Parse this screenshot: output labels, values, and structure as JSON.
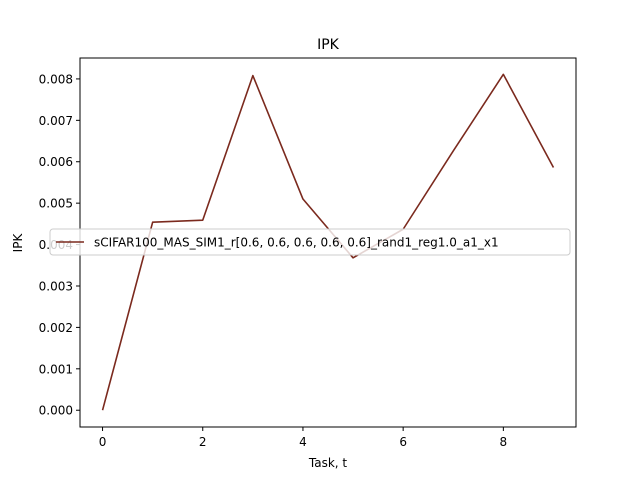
{
  "chart_data": {
    "type": "line",
    "title": "IPK",
    "xlabel": "Task, t",
    "ylabel": "IPK",
    "xlim": [
      -0.45,
      9.45
    ],
    "ylim": [
      -0.000405,
      0.008505
    ],
    "xticks": [
      0,
      2,
      4,
      6,
      8
    ],
    "xtick_labels": [
      "0",
      "2",
      "4",
      "6",
      "8"
    ],
    "yticks": [
      0,
      0.001,
      0.002,
      0.003,
      0.004,
      0.005,
      0.006,
      0.007,
      0.008
    ],
    "ytick_labels": [
      "0.000",
      "0.001",
      "0.002",
      "0.003",
      "0.004",
      "0.005",
      "0.006",
      "0.007",
      "0.008"
    ],
    "grid": false,
    "legend_position": "center-right",
    "series": [
      {
        "name": "sCIFAR100_MAS_SIM1_r[0.6, 0.6, 0.6, 0.6, 0.6]_rand1_reg1.0_a1_x1",
        "color": "#7b2a1e",
        "x": [
          0,
          1,
          2,
          3,
          4,
          5,
          6,
          7,
          8,
          9
        ],
        "y": [
          0.0,
          0.00454,
          0.00459,
          0.00808,
          0.0051,
          0.00368,
          0.00437,
          0.00626,
          0.00811,
          0.00586
        ]
      }
    ]
  }
}
